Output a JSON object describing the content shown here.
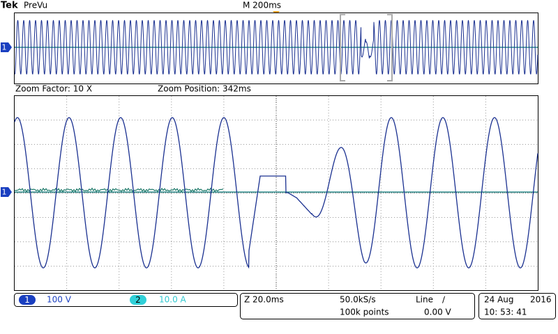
{
  "header": {
    "brand": "Tek",
    "mode": "PreVu",
    "timebase": "M 200ms"
  },
  "zoom": {
    "factor": "Zoom Factor: 10 X",
    "position": "Zoom Position: 342ms"
  },
  "markers": {
    "overview": "1",
    "main": "1"
  },
  "channels": [
    {
      "number": "1",
      "scale": "100 V"
    },
    {
      "number": "2",
      "scale": "10.0 A"
    }
  ],
  "acquisition": {
    "zoom_scale": "Z 20.0ms",
    "sample_rate": "50.0kS/s",
    "record_length": "100k points",
    "trigger_source": "Line",
    "trigger_slope": "∕",
    "trigger_level": "0.00 V"
  },
  "clock": {
    "date": "24 Aug",
    "year": "2016",
    "time": "10: 53: 41"
  }
}
